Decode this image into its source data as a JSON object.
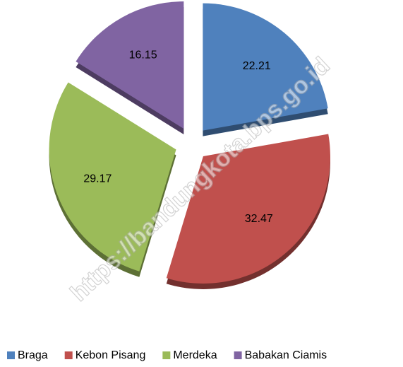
{
  "chart_data": {
    "type": "pie",
    "categories": [
      "Braga",
      "Kebon Pisang",
      "Merdeka",
      "Babakan Ciamis"
    ],
    "values": [
      22.21,
      32.47,
      29.17,
      16.15
    ],
    "colors": [
      "#4f81bd",
      "#c0504d",
      "#9bbb59",
      "#8064a2"
    ],
    "legend": "bottom",
    "watermark": "https://bandungkota.bps.go.id"
  }
}
